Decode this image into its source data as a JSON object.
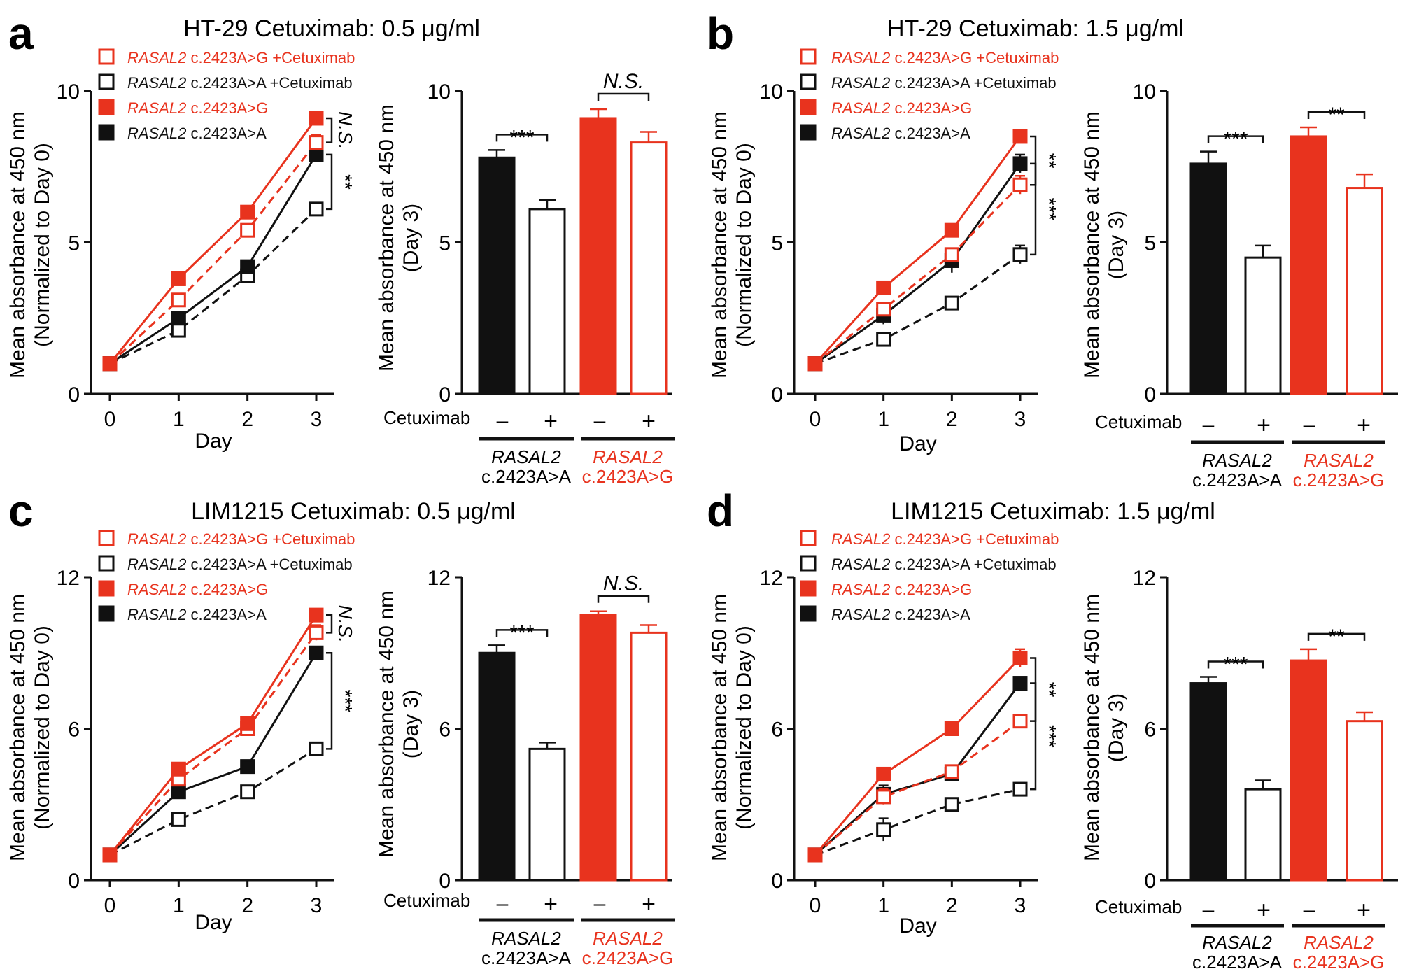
{
  "colors": {
    "black": "#111111",
    "red": "#e8331e",
    "white": "#ffffff"
  },
  "labels": {
    "day": "Day",
    "cetuximab": "Cetuximab",
    "minus": "–",
    "plus": "+",
    "gene": "RASAL2",
    "aa": "c.2423A>A",
    "ag": "c.2423A>G",
    "cetux_suffix": "+Cetuximab"
  },
  "chart_data": [
    {
      "panel": "a",
      "title": "HT-29  Cetuximab: 0.5 μg/ml",
      "line": {
        "type": "line",
        "x": [
          0,
          1,
          2,
          3
        ],
        "xticks": [
          "0",
          "1",
          "2",
          "3"
        ],
        "ylim": [
          0,
          10
        ],
        "yticks": [
          "0",
          "5",
          "10"
        ],
        "ylabel": "Mean absorbance at 450 nm",
        "ylabel2": "(Normalized to Day 0)",
        "xlabel": "Day",
        "series": [
          {
            "name": "RASAL2 c.2423A>G +Cetuximab",
            "values": [
              1.0,
              3.1,
              5.4,
              8.3
            ],
            "err": [
              0.05,
              0.2,
              0.2,
              0.25
            ]
          },
          {
            "name": "RASAL2 c.2423A>A +Cetuximab",
            "values": [
              1.0,
              2.1,
              3.9,
              6.1
            ],
            "err": [
              0.05,
              0.15,
              0.15,
              0.2
            ]
          },
          {
            "name": "RASAL2 c.2423A>G",
            "values": [
              1.0,
              3.8,
              6.0,
              9.1
            ],
            "err": [
              0.05,
              0.15,
              0.2,
              0.2
            ]
          },
          {
            "name": "RASAL2 c.2423A>A",
            "values": [
              1.0,
              2.5,
              4.2,
              7.9
            ],
            "err": [
              0.05,
              0.2,
              0.15,
              0.2
            ]
          }
        ],
        "sig": [
          {
            "label": "N.S."
          },
          {
            "label": "**"
          }
        ]
      },
      "bar": {
        "type": "bar",
        "ylim": [
          0,
          10
        ],
        "yticks": [
          "0",
          "5",
          "10"
        ],
        "ylabel": "Mean absorbance at 450 nm",
        "ylabel2": "(Day 3)",
        "values": [
          7.8,
          6.1,
          9.1,
          8.3
        ],
        "err": [
          0.25,
          0.3,
          0.3,
          0.35
        ],
        "sig": [
          {
            "label": "***"
          },
          {
            "label": "N.S."
          }
        ]
      }
    },
    {
      "panel": "b",
      "title": "HT-29  Cetuximab: 1.5 μg/ml",
      "line": {
        "type": "line",
        "x": [
          0,
          1,
          2,
          3
        ],
        "xticks": [
          "0",
          "1",
          "2",
          "3"
        ],
        "ylim": [
          0,
          10
        ],
        "yticks": [
          "0",
          "5",
          "10"
        ],
        "ylabel": "Mean absorbance at 450 nm",
        "ylabel2": "(Normalized to Day 0)",
        "xlabel": "Day",
        "series": [
          {
            "name": "RASAL2 c.2423A>G +Cetuximab",
            "values": [
              1.0,
              2.8,
              4.6,
              6.9
            ],
            "err": [
              0.05,
              0.2,
              0.2,
              0.3
            ]
          },
          {
            "name": "RASAL2 c.2423A>A +Cetuximab",
            "values": [
              1.0,
              1.8,
              3.0,
              4.6
            ],
            "err": [
              0.05,
              0.15,
              0.15,
              0.3
            ]
          },
          {
            "name": "RASAL2 c.2423A>G",
            "values": [
              1.0,
              3.5,
              5.4,
              8.5
            ],
            "err": [
              0.05,
              0.15,
              0.15,
              0.15
            ]
          },
          {
            "name": "RASAL2 c.2423A>A",
            "values": [
              1.0,
              2.6,
              4.4,
              7.6
            ],
            "err": [
              0.05,
              0.3,
              0.4,
              0.3
            ]
          }
        ],
        "sig": [
          {
            "label": "**"
          },
          {
            "label": "***"
          }
        ]
      },
      "bar": {
        "type": "bar",
        "ylim": [
          0,
          10
        ],
        "yticks": [
          "0",
          "5",
          "10"
        ],
        "ylabel": "Mean absorbance at 450 nm",
        "ylabel2": "(Day 3)",
        "values": [
          7.6,
          4.5,
          8.5,
          6.8
        ],
        "err": [
          0.4,
          0.4,
          0.3,
          0.45
        ],
        "sig": [
          {
            "label": "***"
          },
          {
            "label": "**"
          }
        ]
      }
    },
    {
      "panel": "c",
      "title": "LIM1215 Cetuximab: 0.5 μg/ml",
      "line": {
        "type": "line",
        "x": [
          0,
          1,
          2,
          3
        ],
        "xticks": [
          "0",
          "1",
          "2",
          "3"
        ],
        "ylim": [
          0,
          12
        ],
        "yticks": [
          "0",
          "6",
          "12"
        ],
        "ylabel": "Mean absorbance at 450 nm",
        "ylabel2": "(Normalized to Day 0)",
        "xlabel": "Day",
        "series": [
          {
            "name": "RASAL2 c.2423A>G +Cetuximab",
            "values": [
              1.0,
              4.0,
              6.0,
              9.8
            ],
            "err": [
              0.05,
              0.2,
              0.2,
              0.3
            ]
          },
          {
            "name": "RASAL2 c.2423A>A +Cetuximab",
            "values": [
              1.0,
              2.4,
              3.5,
              5.2
            ],
            "err": [
              0.05,
              0.15,
              0.15,
              0.15
            ]
          },
          {
            "name": "RASAL2 c.2423A>G",
            "values": [
              1.0,
              4.4,
              6.2,
              10.5
            ],
            "err": [
              0.05,
              0.15,
              0.2,
              0.2
            ]
          },
          {
            "name": "RASAL2 c.2423A>A",
            "values": [
              1.0,
              3.5,
              4.5,
              9.0
            ],
            "err": [
              0.05,
              0.2,
              0.15,
              0.2
            ]
          }
        ],
        "sig": [
          {
            "label": "N.S."
          },
          {
            "label": "***"
          }
        ]
      },
      "bar": {
        "type": "bar",
        "ylim": [
          0,
          12
        ],
        "yticks": [
          "0",
          "6",
          "12"
        ],
        "ylabel": "Mean absorbance at 450 nm",
        "ylabel2": "(Day 3)",
        "values": [
          9.0,
          5.2,
          10.5,
          9.8
        ],
        "err": [
          0.3,
          0.25,
          0.15,
          0.3
        ],
        "sig": [
          {
            "label": "***"
          },
          {
            "label": "N.S."
          }
        ]
      }
    },
    {
      "panel": "d",
      "title": "LIM1215  Cetuximab: 1.5 μg/ml",
      "line": {
        "type": "line",
        "x": [
          0,
          1,
          2,
          3
        ],
        "xticks": [
          "0",
          "1",
          "2",
          "3"
        ],
        "ylim": [
          0,
          12
        ],
        "yticks": [
          "0",
          "6",
          "12"
        ],
        "ylabel": "Mean absorbance at 450 nm",
        "ylabel2": "(Normalized to Day 0)",
        "xlabel": "Day",
        "series": [
          {
            "name": "RASAL2 c.2423A>G +Cetuximab",
            "values": [
              1.0,
              3.3,
              4.3,
              6.3
            ],
            "err": [
              0.05,
              0.3,
              0.2,
              0.25
            ]
          },
          {
            "name": "RASAL2 c.2423A>A +Cetuximab",
            "values": [
              1.0,
              2.0,
              3.0,
              3.6
            ],
            "err": [
              0.05,
              0.45,
              0.25,
              0.25
            ]
          },
          {
            "name": "RASAL2 c.2423A>G",
            "values": [
              1.0,
              4.2,
              6.0,
              8.8
            ],
            "err": [
              0.05,
              0.15,
              0.15,
              0.35
            ]
          },
          {
            "name": "RASAL2 c.2423A>A",
            "values": [
              1.0,
              3.4,
              4.2,
              7.8
            ],
            "err": [
              0.05,
              0.35,
              0.2,
              0.2
            ]
          }
        ],
        "sig": [
          {
            "label": "**"
          },
          {
            "label": "***"
          }
        ]
      },
      "bar": {
        "type": "bar",
        "ylim": [
          0,
          12
        ],
        "yticks": [
          "0",
          "6",
          "12"
        ],
        "ylabel": "Mean absorbance at 450 nm",
        "ylabel2": "(Day 3)",
        "values": [
          7.8,
          3.6,
          8.7,
          6.3
        ],
        "err": [
          0.25,
          0.35,
          0.45,
          0.35
        ],
        "sig": [
          {
            "label": "***"
          },
          {
            "label": "**"
          }
        ]
      }
    }
  ]
}
